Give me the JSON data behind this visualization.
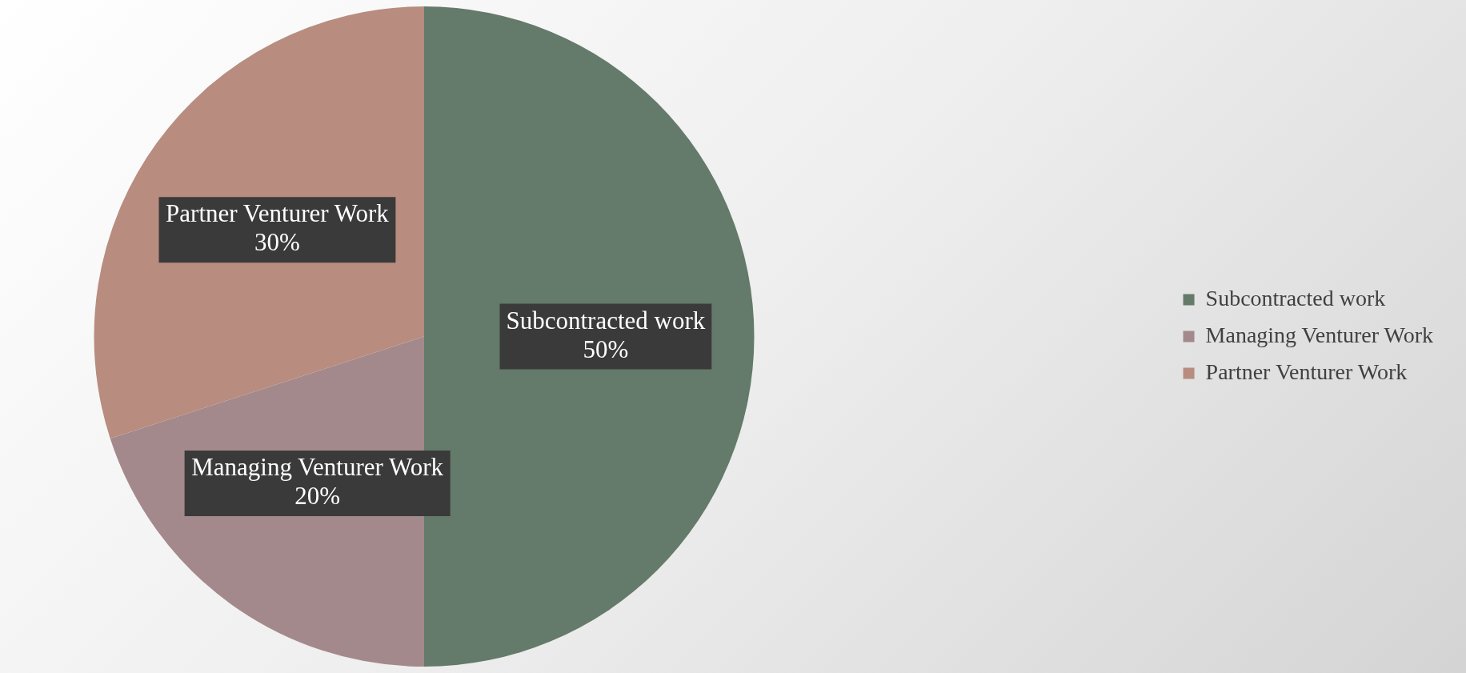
{
  "chart_data": {
    "type": "pie",
    "categories": [
      "Subcontracted work",
      "Managing Venturer Work",
      "Partner Venturer Work"
    ],
    "values": [
      50,
      20,
      30
    ],
    "value_labels": [
      "50%",
      "20%",
      "30%"
    ],
    "colors": [
      "#647a6a",
      "#a4898c",
      "#b88c7f"
    ],
    "legend": "right"
  }
}
